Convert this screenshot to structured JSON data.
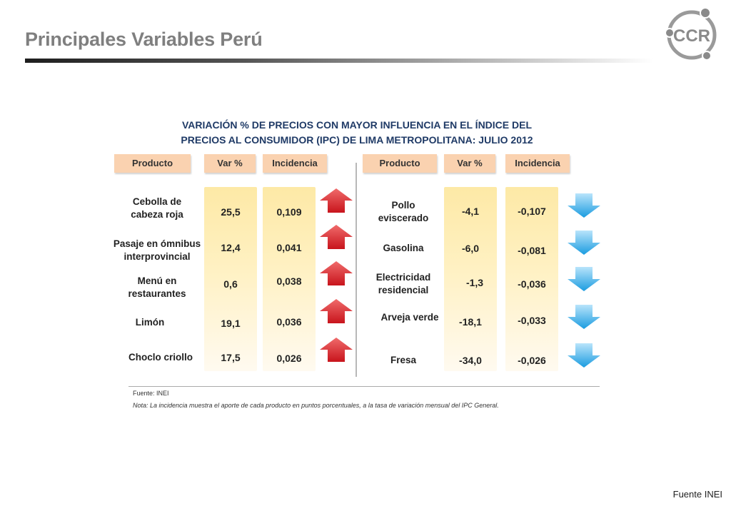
{
  "header": {
    "title": "Principales Variables Perú",
    "logo_text": "CCR"
  },
  "table": {
    "title_line1": "VARIACIÓN % DE PRECIOS CON MAYOR INFLUENCIA EN EL ÍNDICE DEL",
    "title_line2": "PRECIOS AL CONSUMIDOR (IPC) DE LIMA METROPOLITANA: JULIO 2012",
    "headers": {
      "producto": "Producto",
      "var": "Var %",
      "incidencia": "Incidencia"
    },
    "increases": [
      {
        "l1": "Cebolla de",
        "l2": "cabeza roja",
        "var": "25,5",
        "inc": "0,109"
      },
      {
        "l1": "Pasaje en ómnibus",
        "l2": "interprovincial",
        "var": "12,4",
        "inc": "0,041"
      },
      {
        "l1": "Menú en",
        "l2": "restaurantes",
        "var": "0,6",
        "inc": "0,038"
      },
      {
        "l1": "Limón",
        "l2": "",
        "var": "19,1",
        "inc": "0,036"
      },
      {
        "l1": "Choclo criollo",
        "l2": "",
        "var": "17,5",
        "inc": "0,026"
      }
    ],
    "decreases": [
      {
        "l1": "Pollo",
        "l2": "eviscerado",
        "var": "-4,1",
        "inc": "-0,107"
      },
      {
        "l1": "Gasolina",
        "l2": "",
        "var": "-6,0",
        "inc": "-0,081"
      },
      {
        "l1": "Electricidad",
        "l2": "residencial",
        "var": "-1,3",
        "inc": "-0,036"
      },
      {
        "l1": "Arveja verde",
        "l2": "",
        "var": "-18,1",
        "inc": "-0,033"
      },
      {
        "l1": "Fresa",
        "l2": "",
        "var": "-34,0",
        "inc": "-0,026"
      }
    ],
    "source": "Fuente: INEI",
    "note": "Nota: La incidencia muestra el aporte de cada producto en puntos porcentuales, a la tasa de variación mensual del IPC General."
  },
  "footer": {
    "source": "Fuente INEI"
  },
  "colors": {
    "up_arrow": "#e8333a",
    "down_arrow": "#2aa6e6",
    "header_fill": "#fad2b0"
  }
}
